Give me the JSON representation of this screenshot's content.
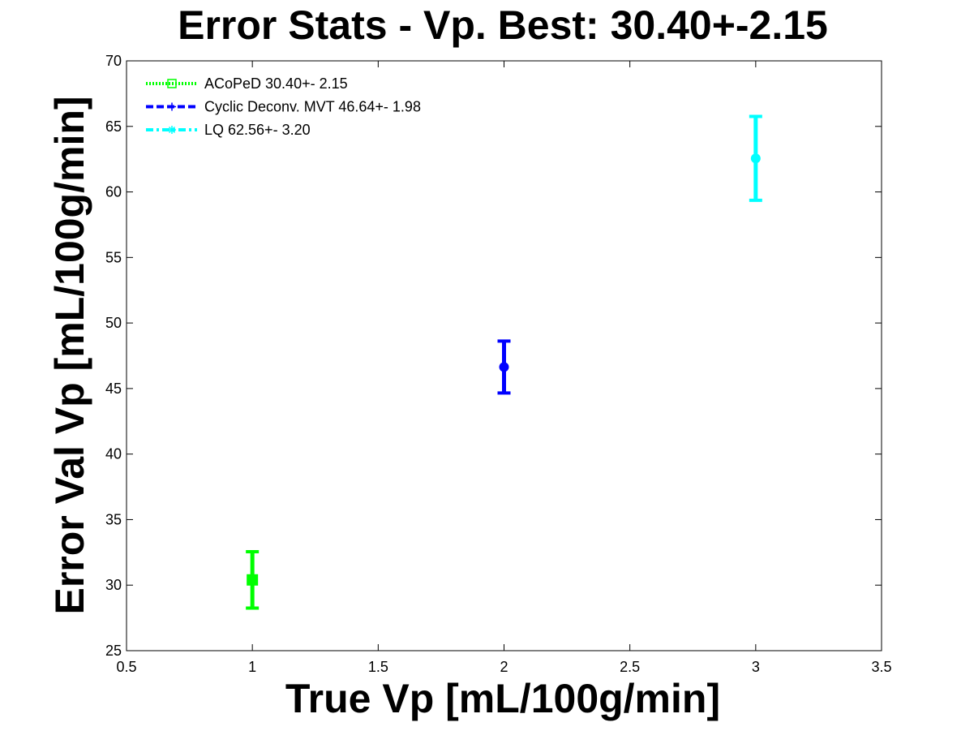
{
  "chart_data": {
    "type": "scatter",
    "title": "Error Stats - Vp. Best: 30.40+-2.15",
    "xlabel": "True Vp [mL/100g/min]",
    "ylabel": "Error Val Vp [mL/100g/min]",
    "xlim": [
      0.5,
      3.5
    ],
    "ylim": [
      25,
      70
    ],
    "xticks": [
      "0.5",
      "1",
      "1.5",
      "2",
      "2.5",
      "3",
      "3.5"
    ],
    "yticks": [
      "25",
      "30",
      "35",
      "40",
      "45",
      "50",
      "55",
      "60",
      "65",
      "70"
    ],
    "grid": false,
    "legend_position": "top-left",
    "series": [
      {
        "name": "ACoPeD 30.40+- 2.15",
        "color": "#00ff00",
        "marker": "square",
        "line_style": "dotted",
        "x": 1,
        "y": 30.4,
        "err": 2.15
      },
      {
        "name": "Cyclic Deconv. MVT 46.64+- 1.98",
        "color": "#0000ff",
        "marker": "plus",
        "line_style": "dashed",
        "x": 2,
        "y": 46.64,
        "err": 1.98
      },
      {
        "name": "LQ 62.56+- 3.20",
        "color": "#00ffff",
        "marker": "star",
        "line_style": "dash-dot",
        "x": 3,
        "y": 62.56,
        "err": 3.2
      }
    ]
  }
}
